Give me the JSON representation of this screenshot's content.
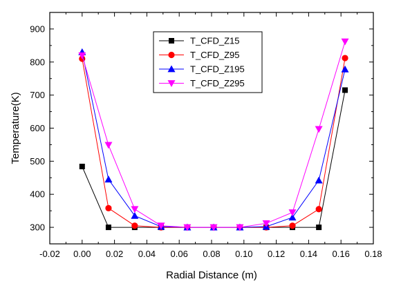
{
  "chart_data": {
    "type": "line",
    "title": "",
    "xlabel": "Radial Distance (m)",
    "ylabel": "Temperature(K)",
    "xlim": [
      -0.02,
      0.18
    ],
    "ylim": [
      250,
      950
    ],
    "x_ticks": [
      "-0.02",
      "0.00",
      "0.02",
      "0.04",
      "0.06",
      "0.08",
      "0.10",
      "0.12",
      "0.14",
      "0.16",
      "0.18"
    ],
    "y_ticks": [
      "300",
      "400",
      "500",
      "600",
      "700",
      "800",
      "900"
    ],
    "x": [
      0.0,
      0.0163,
      0.0325,
      0.0488,
      0.065,
      0.0813,
      0.0975,
      0.1138,
      0.13,
      0.1463,
      0.1625
    ],
    "grid": false,
    "legend_position": "top-center",
    "series": [
      {
        "name": "T_CFD_Z15",
        "color": "#000000",
        "marker": "square",
        "values": [
          484,
          300,
          300,
          300,
          300,
          300,
          300,
          300,
          300,
          300,
          715
        ]
      },
      {
        "name": "T_CFD_Z95",
        "color": "#ff0000",
        "marker": "circle",
        "values": [
          810,
          358,
          305,
          300,
          300,
          300,
          300,
          300,
          305,
          355,
          812
        ]
      },
      {
        "name": "T_CFD_Z195",
        "color": "#0000ff",
        "marker": "triangle-up",
        "values": [
          830,
          445,
          335,
          302,
          300,
          300,
          300,
          302,
          330,
          442,
          778
        ]
      },
      {
        "name": "T_CFD_Z295",
        "color": "#ff00ff",
        "marker": "triangle-down",
        "values": [
          820,
          549,
          355,
          305,
          300,
          300,
          300,
          312,
          345,
          597,
          862
        ]
      }
    ]
  }
}
